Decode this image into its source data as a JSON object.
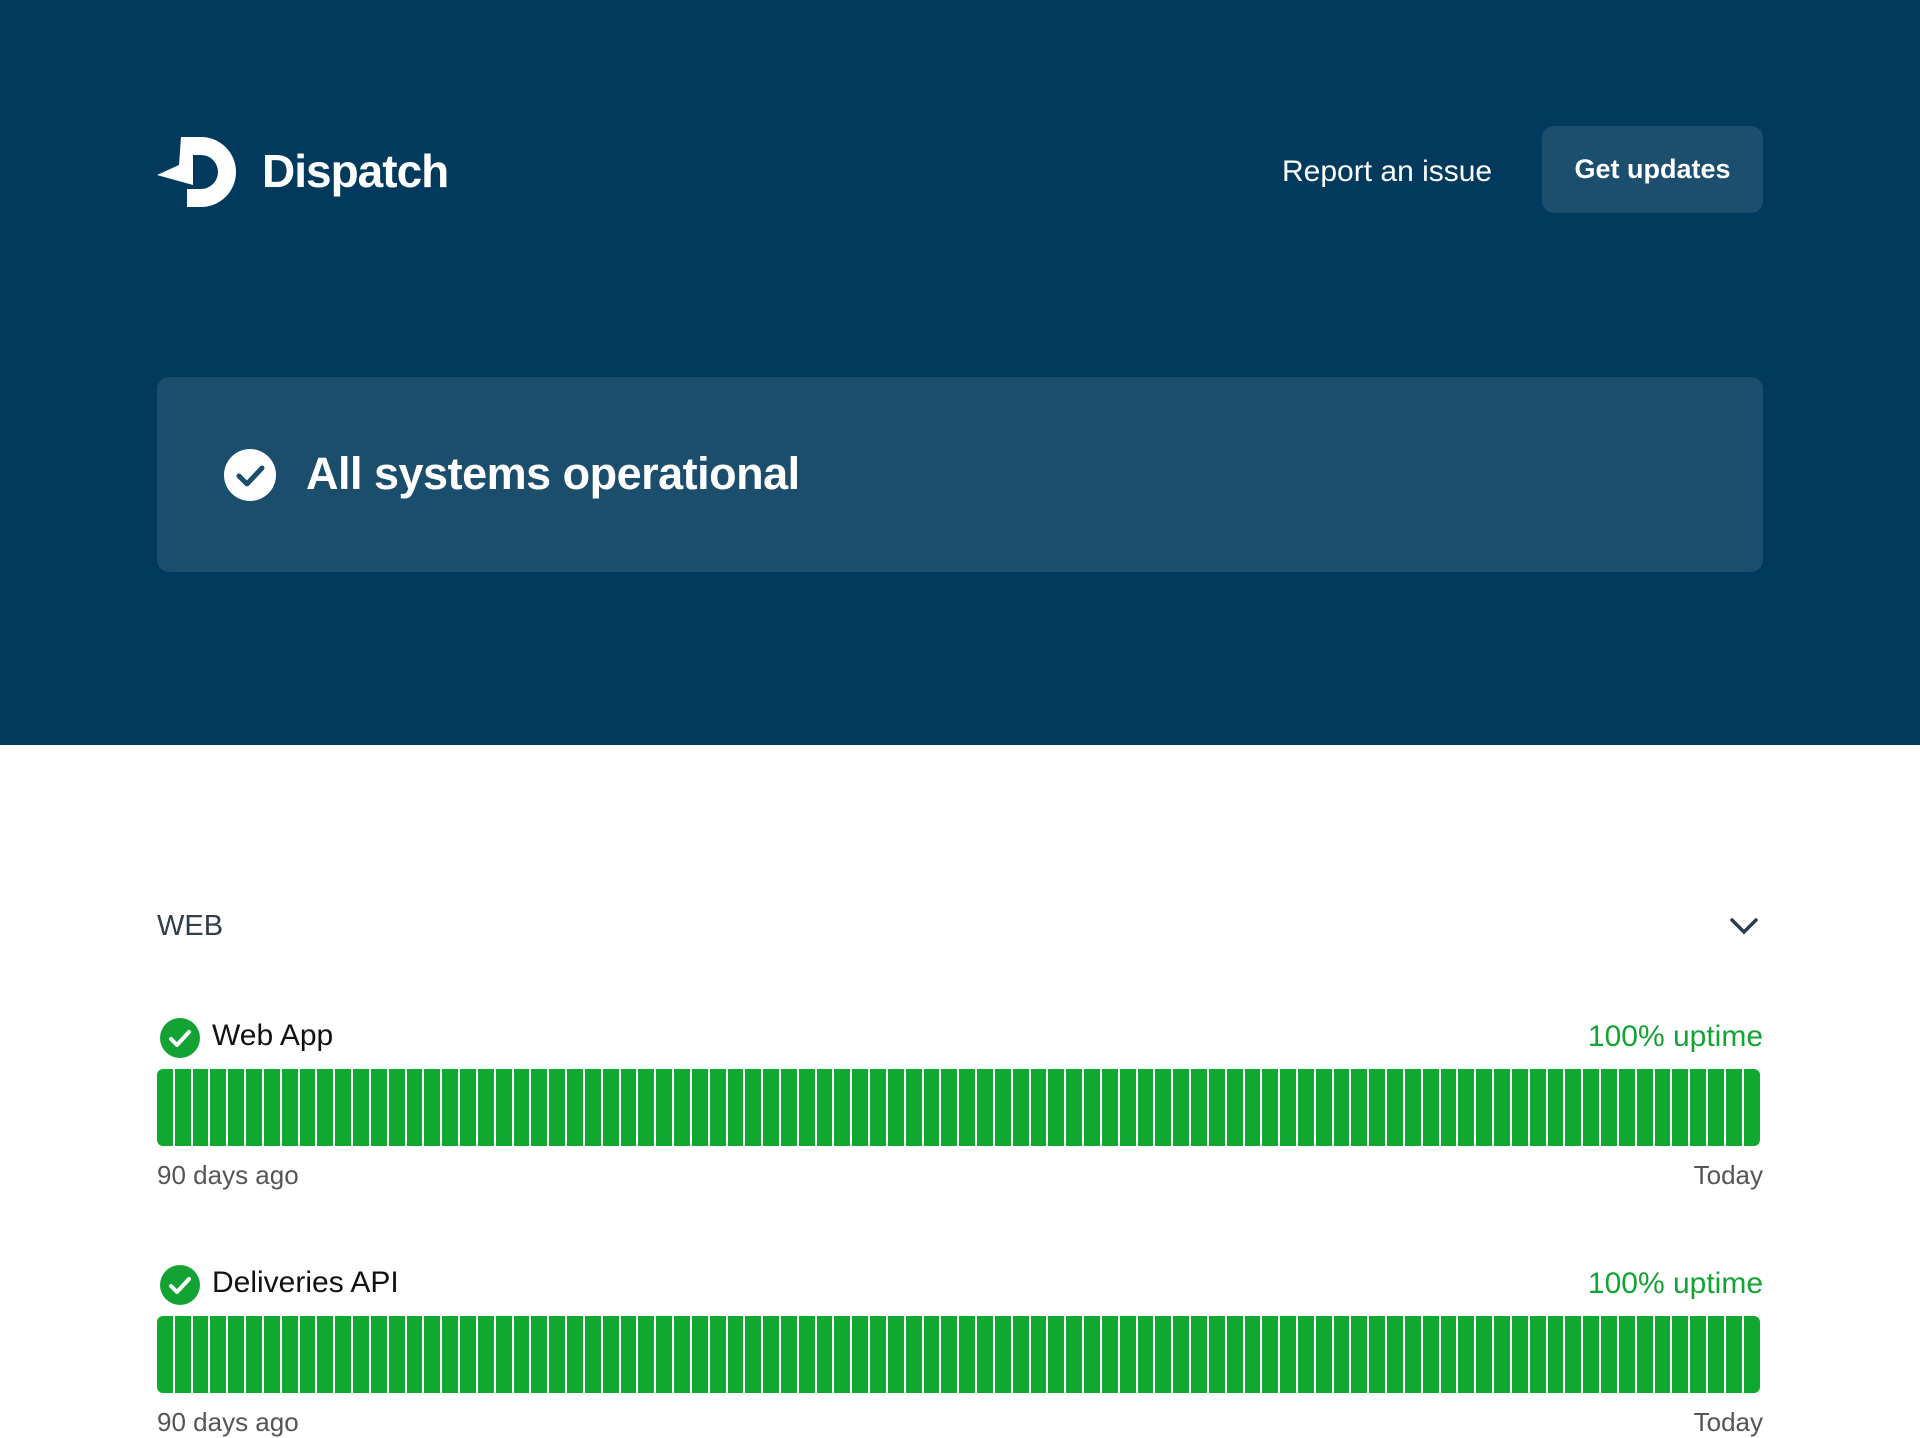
{
  "header": {
    "logo": "Dispatch",
    "report": "Report an issue",
    "button": "Get updates"
  },
  "status": "All systems operational",
  "groups": [
    {
      "name": "WEB",
      "services": [
        {
          "name": "Web App",
          "uptime": "100% uptime",
          "start": "90 days ago",
          "end": "Today"
        },
        {
          "name": "Deliveries API",
          "uptime": "100% uptime",
          "start": "90 days ago",
          "end": "Today"
        }
      ]
    }
  ]
}
